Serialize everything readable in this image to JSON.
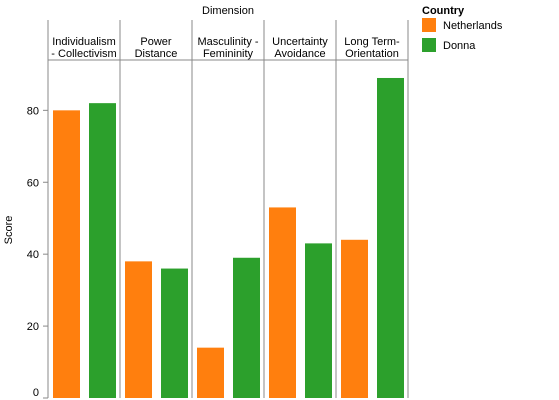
{
  "chart_data": {
    "type": "bar",
    "title": "Dimension",
    "xlabel": "",
    "ylabel": "Score",
    "ylim": [
      0,
      94
    ],
    "yticks": [
      0,
      20,
      40,
      60,
      80
    ],
    "grid": false,
    "categories": [
      [
        "Individualism",
        "- Collectivism"
      ],
      [
        "Power",
        "Distance"
      ],
      [
        "Masculinity -",
        "Femininity"
      ],
      [
        "Uncertainty",
        "Avoidance"
      ],
      [
        "Long Term-",
        "Orientation"
      ]
    ],
    "series": [
      {
        "name": "Netherlands",
        "color": "#ff7f0e",
        "values": [
          80,
          38,
          14,
          53,
          44
        ]
      },
      {
        "name": "Donna",
        "color": "#2ca02c",
        "values": [
          82,
          36,
          39,
          43,
          89
        ]
      }
    ],
    "legend": {
      "title": "Country",
      "position": "top-right"
    }
  }
}
